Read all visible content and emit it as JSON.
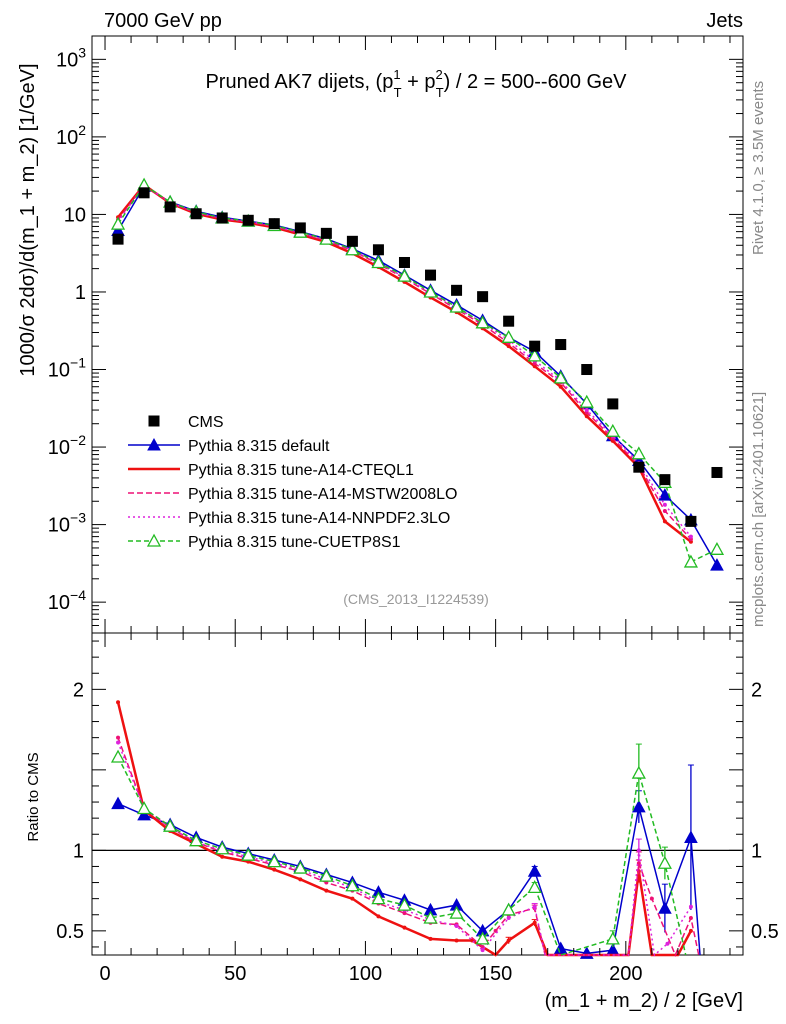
{
  "header": {
    "left": "7000 GeV pp",
    "right": "Jets",
    "side_top": "Rivet 4.1.0, ≥ 3.5M events",
    "side_bottom": "mcplots.cern.ch [arXiv:2401.10621]"
  },
  "chart_data": {
    "type": "scatter",
    "title": "Pruned AK7 dijets, (p_T^1 + p_T^2) / 2 = 500--600 GeV",
    "title_main": "Pruned AK7 dijets, (p",
    "title_sup1": "1",
    "title_sub1": "T",
    "title_plus": " + p",
    "title_sup2": "2",
    "title_sub2": "T",
    "title_end": ") / 2 = 500--600 GeV",
    "analysis_id": "(CMS_2013_I1224539)",
    "xlabel": "(m_1 + m_2) / 2 [GeV]",
    "ylabel_main": "1000/σ   2dσ)/d(m_1 + m_2) [1/GeV]",
    "ylabel_ratio": "Ratio to CMS",
    "xlim": [
      -5,
      245
    ],
    "ylim_main": [
      4e-05,
      2000
    ],
    "ylim_ratio": [
      0.35,
      2.35
    ],
    "x_ticks": [
      "0",
      "50",
      "100",
      "150",
      "200"
    ],
    "x_tick_values": [
      0,
      50,
      100,
      150,
      200
    ],
    "y_ticks_main": [
      {
        "base": "10",
        "exp": "3",
        "value": 1000
      },
      {
        "base": "10",
        "exp": "2",
        "value": 100
      },
      {
        "base": "10",
        "exp": "",
        "value": 10
      },
      {
        "base": "1",
        "exp": "",
        "value": 1
      },
      {
        "base": "10",
        "exp": "−1",
        "value": 0.1
      },
      {
        "base": "10",
        "exp": "−2",
        "value": 0.01
      },
      {
        "base": "10",
        "exp": "−3",
        "value": 0.001
      },
      {
        "base": "10",
        "exp": "−4",
        "value": 0.0001
      }
    ],
    "y_ticks_ratio": [
      {
        "label": "2",
        "value": 2
      },
      {
        "label": "1",
        "value": 1
      },
      {
        "label": "0.5",
        "value": 0.5
      }
    ],
    "x": [
      5,
      15,
      25,
      35,
      45,
      55,
      65,
      75,
      85,
      95,
      105,
      115,
      125,
      135,
      145,
      155,
      165,
      175,
      185,
      195,
      205,
      215,
      225,
      235
    ],
    "data": {
      "name": "CMS",
      "values": [
        4.8,
        19,
        12.5,
        10.2,
        9.0,
        8.4,
        7.6,
        6.7,
        5.7,
        4.5,
        3.5,
        2.4,
        1.65,
        1.05,
        0.87,
        0.42,
        0.2,
        0.21,
        0.1,
        0.036,
        0.0055,
        0.0038,
        0.0011,
        0.0047
      ]
    },
    "series": [
      {
        "name": "Pythia 8.315 default",
        "color": "#0000cc",
        "dash": "",
        "marker": "triangle-filled",
        "x": [
          5,
          15,
          25,
          35,
          45,
          55,
          65,
          75,
          85,
          95,
          105,
          115,
          125,
          135,
          145,
          155,
          165,
          175,
          185,
          195,
          205,
          215,
          225,
          235
        ],
        "values": [
          6.2,
          23,
          14.5,
          11.0,
          9.2,
          8.2,
          7.3,
          6.0,
          4.85,
          3.6,
          2.55,
          1.65,
          1.05,
          0.68,
          0.43,
          0.26,
          0.17,
          0.082,
          0.036,
          0.014,
          0.0067,
          0.0024,
          0.00115,
          0.0003
        ],
        "ratio_x": [
          5,
          15,
          25,
          35,
          45,
          55,
          65,
          75,
          85,
          95,
          105,
          115,
          125,
          135,
          145,
          155,
          165,
          175,
          185,
          195,
          205,
          215,
          225,
          228.5
        ],
        "ratio": [
          1.29,
          1.22,
          1.16,
          1.08,
          1.02,
          0.98,
          0.94,
          0.9,
          0.85,
          0.8,
          0.74,
          0.69,
          0.63,
          0.66,
          0.5,
          0.63,
          0.87,
          0.39,
          0.36,
          0.38,
          1.27,
          0.64,
          1.08,
          0.35
        ],
        "ratio_err": [
          0,
          0,
          0,
          0,
          0,
          0,
          0,
          0,
          0,
          0,
          0,
          0,
          0,
          0,
          0,
          0,
          0.03,
          0,
          0,
          0,
          0.1,
          0.15,
          0.45,
          0
        ]
      },
      {
        "name": "Pythia 8.315 tune-A14-CTEQL1",
        "color": "#ee1111",
        "dash": "",
        "marker": "none",
        "x": [
          5,
          15,
          25,
          35,
          45,
          55,
          65,
          75,
          85,
          95,
          105,
          115,
          125,
          135,
          145,
          155,
          165,
          175,
          185,
          195,
          205,
          215,
          225
        ],
        "values": [
          9.2,
          24,
          14.0,
          10.2,
          8.6,
          7.8,
          6.8,
          5.5,
          4.4,
          3.15,
          2.1,
          1.35,
          0.85,
          0.55,
          0.34,
          0.2,
          0.11,
          0.06,
          0.025,
          0.012,
          0.0055,
          0.0011,
          0.0006
        ],
        "ratio_x": [
          5,
          15,
          25,
          35,
          45,
          55,
          65,
          75,
          85,
          95,
          105,
          115,
          125,
          135,
          141,
          150,
          155,
          165,
          170,
          201,
          205,
          210,
          220,
          225
        ],
        "ratio": [
          1.92,
          1.25,
          1.12,
          1.04,
          0.96,
          0.93,
          0.88,
          0.82,
          0.75,
          0.7,
          0.59,
          0.52,
          0.45,
          0.44,
          0.44,
          0.35,
          0.44,
          0.55,
          0.35,
          0.35,
          0.87,
          0.35,
          0.35,
          0.5
        ],
        "ratio_err": [
          0,
          0,
          0,
          0,
          0,
          0,
          0,
          0,
          0,
          0,
          0,
          0,
          0,
          0,
          0,
          0,
          0.02,
          0.02,
          0,
          0,
          0.07,
          0,
          0,
          0
        ]
      },
      {
        "name": "Pythia 8.315 tune-A14-MSTW2008LO",
        "color": "#ee1177",
        "dash": "6,3",
        "marker": "none",
        "x": [
          5,
          15,
          25,
          35,
          45,
          55,
          65,
          75,
          85,
          95,
          105,
          115,
          125,
          135,
          145,
          155,
          165,
          175,
          185,
          195,
          205,
          215,
          225
        ],
        "values": [
          8.5,
          23.5,
          14.2,
          10.5,
          8.8,
          8.0,
          7.0,
          5.7,
          4.6,
          3.4,
          2.3,
          1.5,
          0.95,
          0.6,
          0.38,
          0.22,
          0.12,
          0.068,
          0.028,
          0.013,
          0.0058,
          0.0015,
          0.00065
        ],
        "ratio_x": [
          5,
          15,
          25,
          35,
          45,
          55,
          65,
          75,
          85,
          95,
          105,
          115,
          125,
          135,
          145,
          150,
          155,
          165,
          169,
          201,
          205,
          210,
          219,
          225,
          228
        ],
        "ratio": [
          1.7,
          1.26,
          1.14,
          1.05,
          0.99,
          0.95,
          0.91,
          0.87,
          0.8,
          0.75,
          0.67,
          0.61,
          0.55,
          0.54,
          0.4,
          0.5,
          0.6,
          0.64,
          0.35,
          0.35,
          0.92,
          0.7,
          0.35,
          0.58,
          0.35
        ],
        "ratio_err": [
          0,
          0,
          0,
          0,
          0,
          0,
          0,
          0,
          0,
          0,
          0,
          0,
          0,
          0,
          0,
          0,
          0,
          0.02,
          0,
          0,
          0.07,
          0,
          0,
          0,
          0
        ]
      },
      {
        "name": "Pythia 8.315 tune-A14-NNPDF2.3LO",
        "color": "#dd22dd",
        "dash": "2,3",
        "marker": "none",
        "x": [
          5,
          15,
          25,
          35,
          45,
          55,
          65,
          75,
          85,
          95,
          105,
          115,
          125,
          135,
          145,
          155,
          165,
          175,
          185,
          195,
          205,
          215,
          225
        ],
        "values": [
          8.0,
          24,
          14.3,
          10.6,
          8.9,
          8.1,
          7.1,
          5.8,
          4.7,
          3.45,
          2.35,
          1.55,
          0.98,
          0.63,
          0.4,
          0.24,
          0.13,
          0.072,
          0.03,
          0.014,
          0.0062,
          0.0018,
          0.0007
        ],
        "ratio_x": [
          5,
          15,
          25,
          35,
          45,
          55,
          65,
          75,
          85,
          95,
          105,
          115,
          125,
          135,
          145,
          155,
          165,
          169,
          201,
          205,
          211,
          216,
          225
        ],
        "ratio": [
          1.67,
          1.26,
          1.14,
          1.05,
          1.0,
          0.96,
          0.92,
          0.88,
          0.82,
          0.77,
          0.68,
          0.63,
          0.57,
          0.53,
          0.38,
          0.58,
          0.65,
          0.35,
          0.35,
          1.0,
          0.35,
          0.42,
          0.65
        ],
        "ratio_err": [
          0,
          0,
          0,
          0,
          0,
          0,
          0,
          0,
          0,
          0,
          0,
          0,
          0,
          0,
          0,
          0,
          0.02,
          0,
          0,
          0.07,
          0,
          0,
          0
        ]
      },
      {
        "name": "Pythia 8.315 tune-CUETP8S1",
        "color": "#22bb22",
        "dash": "5,3",
        "marker": "triangle-open",
        "x": [
          5,
          15,
          25,
          35,
          45,
          55,
          65,
          75,
          85,
          95,
          105,
          115,
          125,
          135,
          145,
          155,
          165,
          175,
          185,
          195,
          205,
          215,
          225,
          235
        ],
        "values": [
          7.5,
          24,
          14.4,
          10.8,
          9.0,
          8.2,
          7.2,
          5.9,
          4.8,
          3.5,
          2.4,
          1.6,
          1.0,
          0.64,
          0.4,
          0.26,
          0.15,
          0.078,
          0.038,
          0.016,
          0.0082,
          0.0035,
          0.00033,
          0.00048
        ],
        "ratio_x": [
          5,
          15,
          25,
          35,
          45,
          55,
          65,
          75,
          85,
          95,
          105,
          115,
          125,
          135,
          145,
          155,
          165,
          175,
          195,
          205,
          215,
          223
        ],
        "ratio": [
          1.58,
          1.26,
          1.15,
          1.06,
          1.01,
          0.97,
          0.93,
          0.89,
          0.84,
          0.78,
          0.7,
          0.66,
          0.58,
          0.61,
          0.45,
          0.63,
          0.77,
          0.35,
          0.45,
          1.48,
          0.92,
          0.35
        ],
        "ratio_err": [
          0,
          0,
          0,
          0,
          0,
          0,
          0,
          0,
          0,
          0,
          0,
          0,
          0,
          0,
          0,
          0,
          0.03,
          0,
          0.05,
          0.18,
          0.1,
          0
        ]
      }
    ]
  }
}
